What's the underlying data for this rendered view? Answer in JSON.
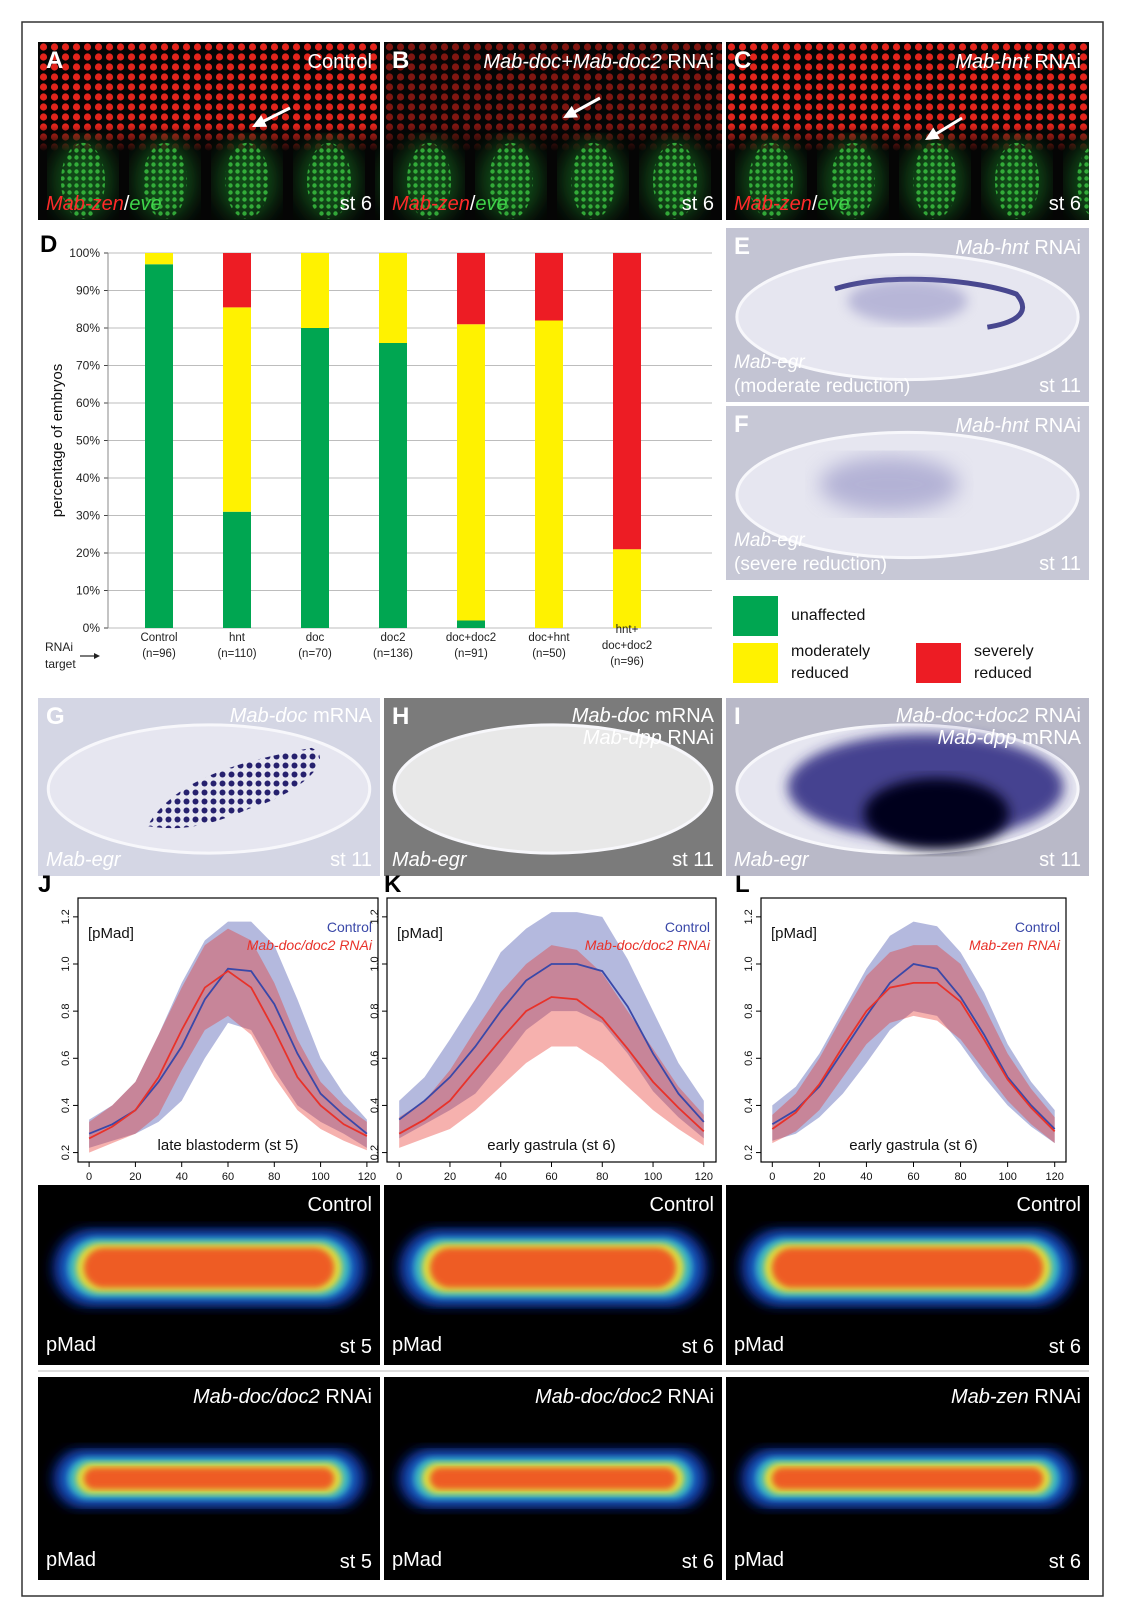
{
  "panels": {
    "A": {
      "letter": "A",
      "title": "Control",
      "stain": [
        "Mab-zen",
        "/",
        "eve"
      ],
      "stage": "st 6"
    },
    "B": {
      "letter": "B",
      "title": [
        "Mab-doc+Mab-doc2",
        "RNAi"
      ],
      "stain": [
        "Mab-zen",
        "/",
        "eve"
      ],
      "stage": "st 6"
    },
    "C": {
      "letter": "C",
      "title": [
        "Mab-hnt",
        "RNAi"
      ],
      "stain": [
        "Mab-zen",
        "/",
        "eve"
      ],
      "stage": "st 6"
    },
    "E": {
      "letter": "E",
      "title": [
        "Mab-hnt",
        "RNAi"
      ],
      "probe": "Mab-egr",
      "note": "(moderate reduction)",
      "stage": "st 11"
    },
    "F": {
      "letter": "F",
      "title": [
        "Mab-hnt",
        "RNAi"
      ],
      "probe": "Mab-egr",
      "note": "(severe reduction)",
      "stage": "st 11"
    },
    "G": {
      "letter": "G",
      "title": [
        [
          "Mab-doc",
          "mRNA"
        ]
      ],
      "probe": "Mab-egr",
      "stage": "st 11"
    },
    "H": {
      "letter": "H",
      "title": [
        [
          "Mab-doc",
          "mRNA"
        ],
        [
          "Mab-dpp",
          "RNAi"
        ]
      ],
      "probe": "Mab-egr",
      "stage": "st 11"
    },
    "I": {
      "letter": "I",
      "title": [
        [
          "Mab-doc+doc2",
          "RNAi"
        ],
        [
          "Mab-dpp",
          "mRNA"
        ]
      ],
      "probe": "Mab-egr",
      "stage": "st 11"
    },
    "heatmaps": [
      {
        "title": "Control",
        "label": "pMad",
        "stage": "st 5"
      },
      {
        "title": "Control",
        "label": "pMad",
        "stage": "st 6"
      },
      {
        "title": "Control",
        "label": "pMad",
        "stage": "st 6"
      },
      {
        "title": [
          "Mab-doc/doc2",
          "RNAi"
        ],
        "label": "pMad",
        "stage": "st 5"
      },
      {
        "title": [
          "Mab-doc/doc2",
          "RNAi"
        ],
        "label": "pMad",
        "stage": "st 6"
      },
      {
        "title": [
          "Mab-zen",
          "RNAi"
        ],
        "label": "pMad",
        "stage": "st 6"
      }
    ]
  },
  "chart_data": [
    {
      "type": "bar",
      "panel": "D",
      "stacked": true,
      "ylabel": "percentage of embryos",
      "xlabel": [
        "RNAi",
        "target"
      ],
      "categories": [
        [
          "Control",
          "(n=96)"
        ],
        [
          "hnt",
          "(n=110)"
        ],
        [
          "doc",
          "(n=70)"
        ],
        [
          "doc2",
          "(n=136)"
        ],
        [
          "doc+doc2",
          "(n=91)"
        ],
        [
          "doc+hnt",
          "(n=50)"
        ],
        [
          "hnt+",
          "doc+doc2",
          "(n=96)"
        ]
      ],
      "series": [
        {
          "name": "unaffected",
          "color": "#00a651",
          "values": [
            97,
            31,
            80,
            76,
            2,
            0,
            0
          ]
        },
        {
          "name": "moderately reduced",
          "color": "#fff200",
          "values": [
            3,
            54.5,
            20,
            24,
            79,
            82,
            21
          ]
        },
        {
          "name": "severely reduced",
          "color": "#ed1c24",
          "values": [
            0,
            14.5,
            0,
            0,
            19,
            18,
            79
          ]
        }
      ],
      "ylim": [
        0,
        100
      ],
      "yticks": [
        {
          "value": 0,
          "label": "0%"
        },
        {
          "value": 10,
          "label": "10%"
        },
        {
          "value": 20,
          "label": "20%"
        },
        {
          "value": 30,
          "label": "30%"
        },
        {
          "value": 40,
          "label": "40%"
        },
        {
          "value": 50,
          "label": "50%"
        },
        {
          "value": 60,
          "label": "60%"
        },
        {
          "value": 70,
          "label": "70%"
        },
        {
          "value": 80,
          "label": "80%"
        },
        {
          "value": 90,
          "label": "90%"
        },
        {
          "value": 100,
          "label": "100%"
        }
      ],
      "grid": true
    },
    {
      "type": "line",
      "panel": "J",
      "ylabel": "[pMad]",
      "annotation": "late blastoderm (st 5)",
      "x": [
        0,
        10,
        20,
        30,
        40,
        50,
        60,
        70,
        80,
        90,
        100,
        110,
        120
      ],
      "series": [
        {
          "name": "Control",
          "color": "#3a48a8",
          "values": [
            0.28,
            0.32,
            0.38,
            0.5,
            0.65,
            0.85,
            0.98,
            0.97,
            0.83,
            0.62,
            0.45,
            0.36,
            0.28
          ],
          "lower": [
            0.22,
            0.25,
            0.28,
            0.33,
            0.42,
            0.6,
            0.75,
            0.72,
            0.55,
            0.4,
            0.33,
            0.28,
            0.22
          ],
          "upper": [
            0.34,
            0.4,
            0.5,
            0.7,
            0.92,
            1.1,
            1.18,
            1.18,
            1.08,
            0.85,
            0.6,
            0.45,
            0.34
          ]
        },
        {
          "name": "Mab-doc/doc2 RNAi",
          "color": "#e8322a",
          "values": [
            0.26,
            0.31,
            0.38,
            0.52,
            0.72,
            0.9,
            0.97,
            0.9,
            0.72,
            0.52,
            0.4,
            0.32,
            0.27
          ],
          "lower": [
            0.2,
            0.24,
            0.28,
            0.36,
            0.55,
            0.72,
            0.78,
            0.7,
            0.52,
            0.38,
            0.3,
            0.25,
            0.21
          ],
          "upper": [
            0.33,
            0.4,
            0.5,
            0.7,
            0.9,
            1.08,
            1.15,
            1.1,
            0.92,
            0.68,
            0.5,
            0.4,
            0.33
          ]
        }
      ],
      "xlim": [
        -4.8,
        124.8
      ],
      "xticks": [
        0,
        20,
        40,
        60,
        80,
        100,
        120
      ],
      "ylim": [
        0.16,
        1.28
      ],
      "yticks": [
        0.2,
        0.4,
        0.6,
        0.8,
        {
          "value": 1,
          "label": "1.0"
        },
        1.2
      ]
    },
    {
      "type": "line",
      "panel": "K",
      "ylabel": "[pMad]",
      "annotation": "early gastrula (st 6)",
      "x": [
        0,
        10,
        20,
        30,
        40,
        50,
        60,
        70,
        80,
        90,
        100,
        110,
        120
      ],
      "series": [
        {
          "name": "Control",
          "color": "#3a48a8",
          "values": [
            0.34,
            0.42,
            0.52,
            0.65,
            0.8,
            0.93,
            1.0,
            1.0,
            0.97,
            0.82,
            0.62,
            0.45,
            0.33
          ],
          "lower": [
            0.26,
            0.32,
            0.38,
            0.45,
            0.58,
            0.72,
            0.8,
            0.8,
            0.75,
            0.62,
            0.46,
            0.35,
            0.26
          ],
          "upper": [
            0.42,
            0.52,
            0.68,
            0.85,
            1.05,
            1.15,
            1.22,
            1.22,
            1.2,
            1.02,
            0.8,
            0.58,
            0.42
          ]
        },
        {
          "name": "Mab-doc/doc2 RNAi",
          "color": "#e8322a",
          "values": [
            0.28,
            0.34,
            0.42,
            0.55,
            0.68,
            0.8,
            0.86,
            0.85,
            0.77,
            0.64,
            0.5,
            0.39,
            0.29
          ],
          "lower": [
            0.22,
            0.26,
            0.3,
            0.38,
            0.48,
            0.58,
            0.65,
            0.65,
            0.58,
            0.48,
            0.38,
            0.3,
            0.23
          ],
          "upper": [
            0.35,
            0.42,
            0.55,
            0.72,
            0.88,
            1.0,
            1.08,
            1.06,
            0.96,
            0.8,
            0.64,
            0.48,
            0.36
          ]
        }
      ],
      "xlim": [
        -4.8,
        124.8
      ],
      "xticks": [
        0,
        20,
        40,
        60,
        80,
        100,
        120
      ],
      "ylim": [
        0.16,
        1.28
      ],
      "yticks": [
        0.2,
        0.4,
        0.6,
        0.8,
        {
          "value": 1,
          "label": "1.0"
        },
        1.2
      ]
    },
    {
      "type": "line",
      "panel": "L",
      "ylabel": "[pMad]",
      "annotation": "early gastrula (st 6)",
      "x": [
        0,
        10,
        20,
        30,
        40,
        50,
        60,
        70,
        80,
        90,
        100,
        110,
        120
      ],
      "series": [
        {
          "name": "Control",
          "color": "#3a48a8",
          "values": [
            0.32,
            0.38,
            0.48,
            0.63,
            0.78,
            0.92,
            1.0,
            0.98,
            0.86,
            0.7,
            0.52,
            0.4,
            0.3
          ],
          "lower": [
            0.25,
            0.28,
            0.35,
            0.45,
            0.58,
            0.72,
            0.8,
            0.78,
            0.66,
            0.52,
            0.4,
            0.31,
            0.24
          ],
          "upper": [
            0.4,
            0.48,
            0.62,
            0.8,
            0.98,
            1.12,
            1.18,
            1.16,
            1.05,
            0.88,
            0.66,
            0.5,
            0.38
          ]
        },
        {
          "name": "Mab-zen RNAi",
          "color": "#e8322a",
          "values": [
            0.3,
            0.37,
            0.49,
            0.65,
            0.8,
            0.9,
            0.92,
            0.92,
            0.84,
            0.68,
            0.51,
            0.39,
            0.29
          ],
          "lower": [
            0.24,
            0.29,
            0.38,
            0.52,
            0.66,
            0.75,
            0.78,
            0.76,
            0.68,
            0.55,
            0.42,
            0.32,
            0.24
          ],
          "upper": [
            0.36,
            0.45,
            0.6,
            0.78,
            0.95,
            1.05,
            1.08,
            1.08,
            1.0,
            0.82,
            0.62,
            0.47,
            0.35
          ]
        }
      ],
      "xlim": [
        -4.8,
        124.8
      ],
      "xticks": [
        0,
        20,
        40,
        60,
        80,
        100,
        120
      ],
      "ylim": [
        0.16,
        1.28
      ],
      "yticks": [
        0.2,
        0.4,
        0.6,
        0.8,
        {
          "value": 1,
          "label": "1.0"
        },
        1.2
      ]
    }
  ]
}
